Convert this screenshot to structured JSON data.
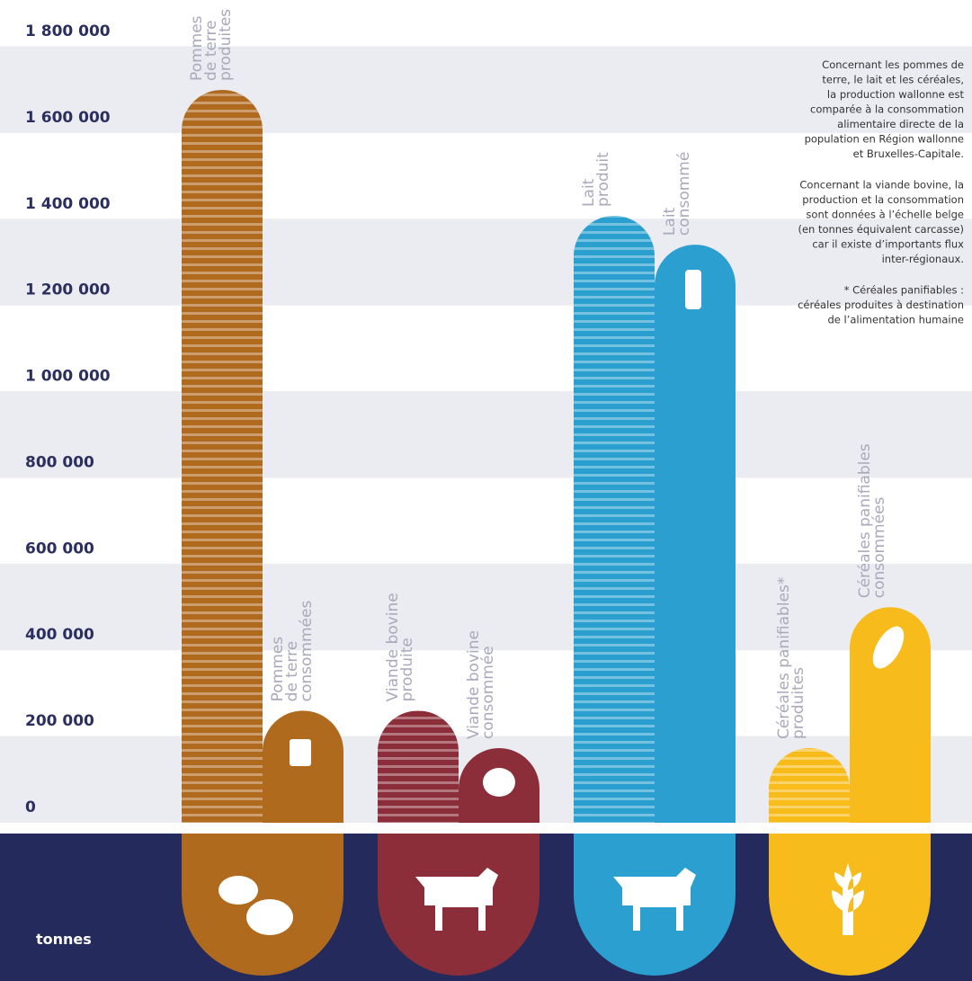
{
  "chart_data": {
    "type": "bar",
    "categories": [
      [
        "Pommes",
        "de terre",
        "produites"
      ],
      [
        "Pommes",
        "de terre",
        "consommées"
      ],
      [
        "Viande bovine",
        "produite"
      ],
      [
        "Viande bovine",
        "consommée"
      ],
      [
        "Lait",
        "produit"
      ],
      [
        "Lait",
        "consommé"
      ],
      [
        "Céréales panifiables*",
        "produites"
      ],
      [
        "Céréales panifiables",
        "consommées"
      ]
    ],
    "values": [
      1700000,
      260000,
      260000,
      173000,
      1408000,
      1341000,
      173000,
      500000
    ],
    "colors": [
      "#b06a1e",
      "#b06a1e",
      "#8b2e3a",
      "#8b2e3a",
      "#2a9fd0",
      "#2a9fd0",
      "#f7bb1b",
      "#f7bb1b"
    ],
    "striped": [
      true,
      false,
      true,
      false,
      true,
      false,
      true,
      false
    ],
    "ylim": [
      0,
      1800000
    ],
    "yticks": [
      0,
      {
        "value": 200000,
        "label": "200 000"
      },
      {
        "value": 400000,
        "label": "400 000"
      },
      {
        "value": 600000,
        "label": "600 000"
      },
      {
        "value": 800000,
        "label": "800 000"
      },
      {
        "value": 1000000,
        "label": "1 000 000"
      },
      {
        "value": 1200000,
        "label": "1 200 000"
      },
      {
        "value": 1400000,
        "label": "1 400 000"
      },
      {
        "value": 1600000,
        "label": "1 600 000"
      },
      {
        "value": 1800000,
        "label": "1 800 000"
      }
    ],
    "grid": true,
    "unit_label": "tonnes",
    "notes": [
      [
        "Concernant les pommes de",
        "terre, le lait et les céréales,",
        "la production wallonne est",
        "comparée à la consommation",
        "alimentaire directe de la",
        "population en Région wallonne",
        "et Bruxelles-Capitale."
      ],
      [
        "Concernant la viande bovine, la",
        "production et la consommation",
        "sont données à l’échelle belge",
        "(en tonnes équivalent carcasse)",
        "car il existe d’importants flux",
        "inter-régionaux."
      ],
      [
        "* Céréales panifiables :",
        "céréales produites à destination",
        "de l’alimentation humaine"
      ]
    ]
  }
}
